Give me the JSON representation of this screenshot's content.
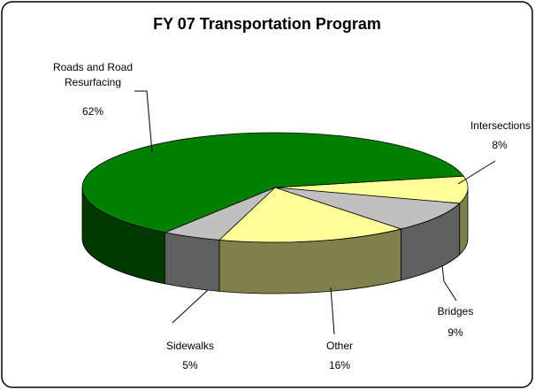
{
  "chart_data": {
    "type": "pie3d",
    "title": "FY 07 Transportation Program",
    "categories": [
      "Intersections",
      "Bridges",
      "Other",
      "Sidewalks",
      "Roads and Road Resurfacing"
    ],
    "values": [
      8,
      9,
      16,
      5,
      62
    ],
    "value_labels": [
      "8%",
      "9%",
      "16%",
      "5%",
      "62%"
    ],
    "colors": [
      "#ffff99",
      "#c0c0c0",
      "#ffff99",
      "#c0c0c0",
      "#008000"
    ]
  }
}
